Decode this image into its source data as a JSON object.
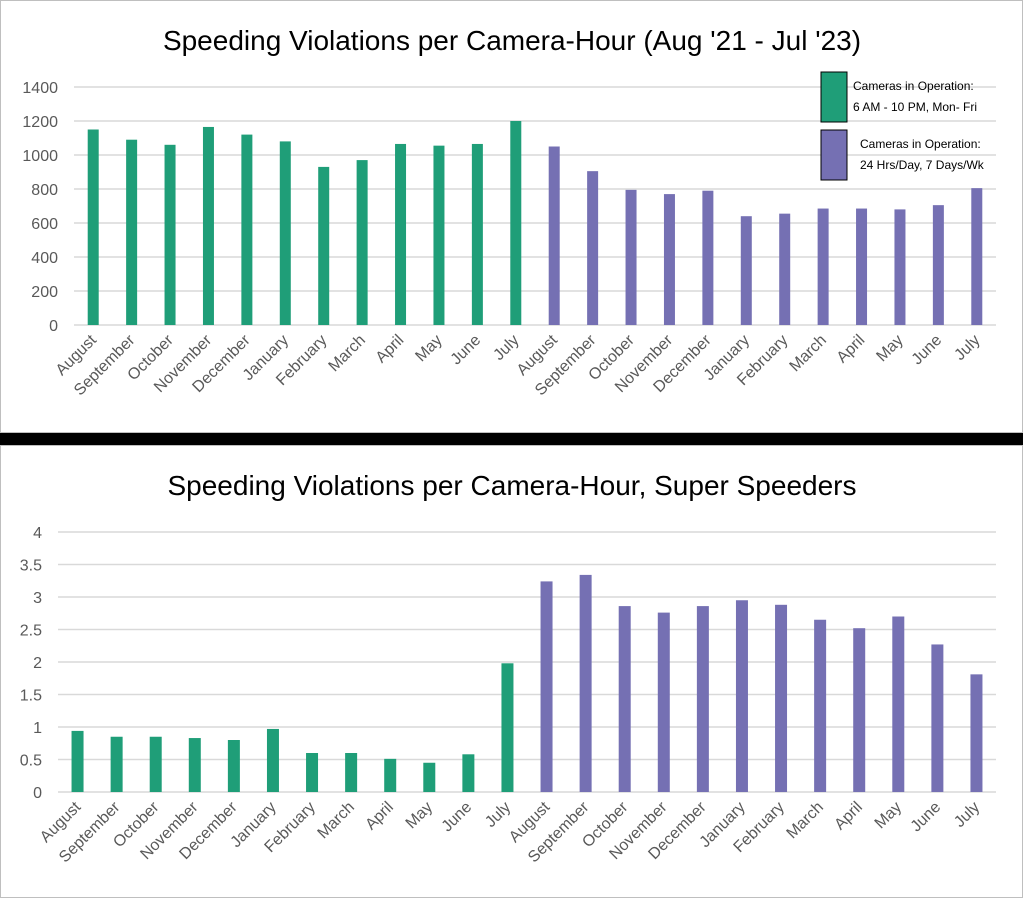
{
  "colors": {
    "limited_hours": "#1f9e78",
    "full_time": "#7570b3",
    "grid": "#d9d9d9",
    "separator": "#000000"
  },
  "chart_data": [
    {
      "type": "bar",
      "title": "Speeding Violations per Camera-Hour (Aug '21 - Jul '23)",
      "xlabel": "",
      "ylabel": "",
      "ylim": [
        0,
        1400
      ],
      "yticks": [
        0,
        200,
        400,
        600,
        800,
        1000,
        1200,
        1400
      ],
      "grid": true,
      "legend_position": "top-right",
      "categories": [
        "August",
        "September",
        "October",
        "November",
        "December",
        "January",
        "February",
        "March",
        "April",
        "May",
        "June",
        "July",
        "August",
        "September",
        "October",
        "November",
        "December",
        "January",
        "February",
        "March",
        "April",
        "May",
        "June",
        "July"
      ],
      "values": [
        1150,
        1090,
        1060,
        1165,
        1120,
        1080,
        930,
        970,
        1065,
        1055,
        1065,
        1200,
        1050,
        905,
        795,
        770,
        790,
        640,
        655,
        685,
        685,
        680,
        705,
        805
      ],
      "series_index": [
        0,
        0,
        0,
        0,
        0,
        0,
        0,
        0,
        0,
        0,
        0,
        0,
        1,
        1,
        1,
        1,
        1,
        1,
        1,
        1,
        1,
        1,
        1,
        1
      ],
      "series": [
        {
          "name": "Cameras in Operation: 6 AM - 10 PM, Mon- Fri",
          "line1": "Cameras in Operation:",
          "line2": "6 AM - 10 PM, Mon- Fri",
          "color": "#1f9e78"
        },
        {
          "name": "Cameras in Operation: 24 Hrs/Day, 7 Days/Wk",
          "line1": "Cameras in Operation:",
          "line2": "24 Hrs/Day, 7 Days/Wk",
          "color": "#7570b3"
        }
      ]
    },
    {
      "type": "bar",
      "title": "Speeding Violations per Camera-Hour, Super Speeders",
      "xlabel": "",
      "ylabel": "",
      "ylim": [
        0,
        4
      ],
      "yticks": [
        0,
        0.5,
        1,
        1.5,
        2,
        2.5,
        3,
        3.5,
        4
      ],
      "grid": true,
      "categories": [
        "August",
        "September",
        "October",
        "November",
        "December",
        "January",
        "February",
        "March",
        "April",
        "May",
        "June",
        "July",
        "August",
        "September",
        "October",
        "November",
        "December",
        "January",
        "February",
        "March",
        "April",
        "May",
        "June",
        "July"
      ],
      "values": [
        0.94,
        0.85,
        0.85,
        0.83,
        0.8,
        0.97,
        0.6,
        0.6,
        0.51,
        0.45,
        0.58,
        1.98,
        3.24,
        3.34,
        2.86,
        2.76,
        2.86,
        2.95,
        2.88,
        2.65,
        2.52,
        2.7,
        2.27,
        1.81
      ],
      "series_index": [
        0,
        0,
        0,
        0,
        0,
        0,
        0,
        0,
        0,
        0,
        0,
        0,
        1,
        1,
        1,
        1,
        1,
        1,
        1,
        1,
        1,
        1,
        1,
        1
      ]
    }
  ]
}
